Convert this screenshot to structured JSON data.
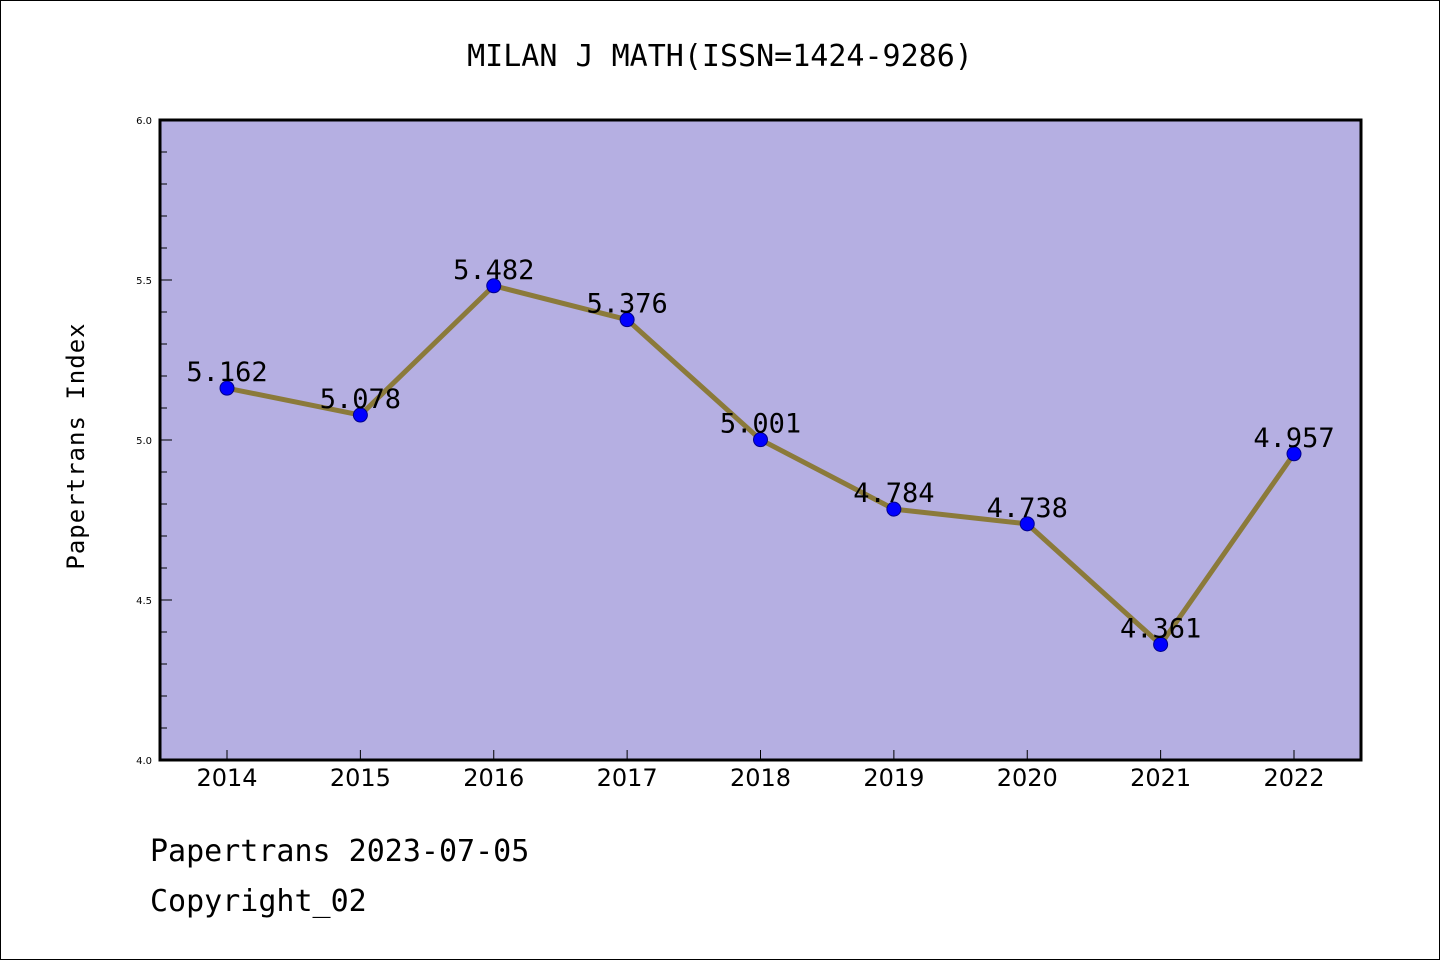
{
  "chart_data": {
    "type": "line",
    "title": "MILAN J MATH(ISSN=1424-9286)",
    "xlabel": "",
    "ylabel": "Papertrans Index",
    "categories": [
      "2014",
      "2015",
      "2016",
      "2017",
      "2018",
      "2019",
      "2020",
      "2021",
      "2022"
    ],
    "values": [
      5.162,
      5.078,
      5.482,
      5.376,
      5.001,
      4.784,
      4.738,
      4.361,
      4.957
    ],
    "value_labels": [
      "5.162",
      "5.078",
      "5.482",
      "5.376",
      "5.001",
      "4.784",
      "4.738",
      "4.361",
      "4.957"
    ],
    "ylim": [
      4.0,
      6.0
    ],
    "yticks": [
      "4.0",
      "4.5",
      "5.0",
      "5.5",
      "6.0"
    ],
    "grid": false,
    "colors": {
      "plot_background": "#b5afe2",
      "line": "#8b7a3a",
      "marker": "#0000ff",
      "marker_edge": "#00008b"
    }
  },
  "footer": {
    "line1": "Papertrans 2023-07-05",
    "line2": "Copyright_02"
  }
}
